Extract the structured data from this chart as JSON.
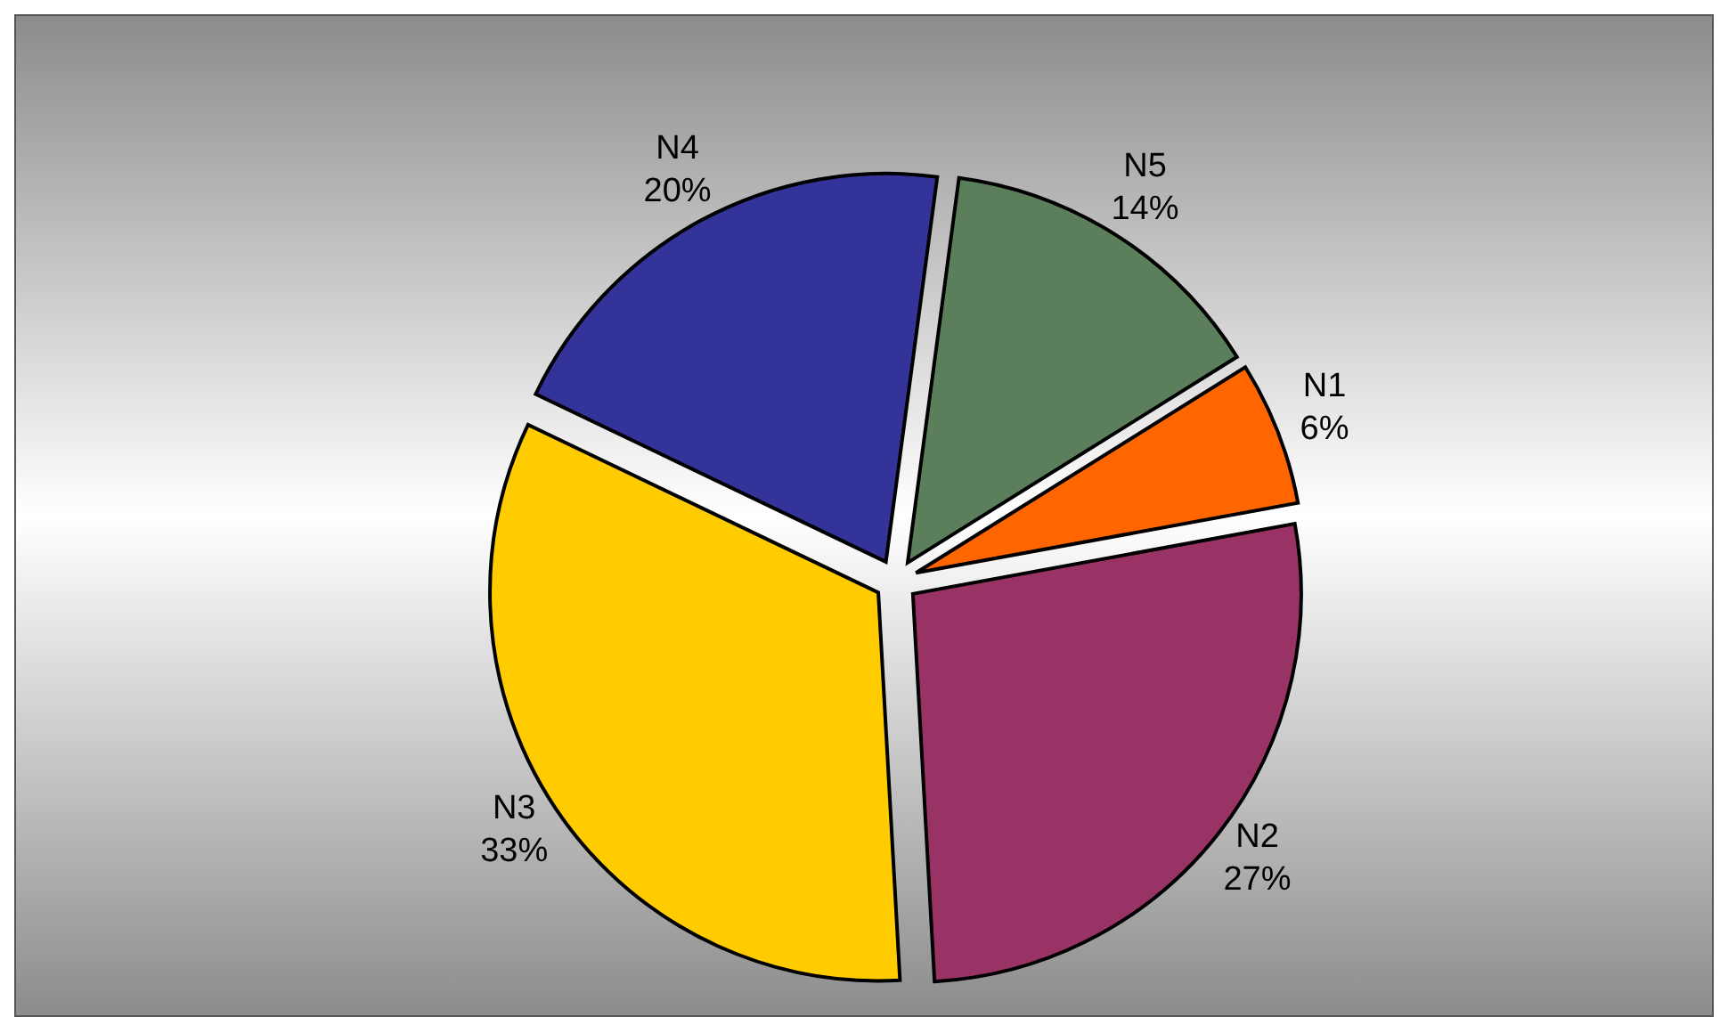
{
  "chart_data": {
    "type": "pie",
    "categories": [
      "N1",
      "N2",
      "N3",
      "N4",
      "N5"
    ],
    "values": [
      6,
      27,
      33,
      20,
      14
    ],
    "value_labels": [
      "6%",
      "27%",
      "33%",
      "20%",
      "14%"
    ],
    "colors": [
      "#ff6600",
      "#993366",
      "#ffcc00",
      "#333399",
      "#5a7f5a"
    ]
  }
}
